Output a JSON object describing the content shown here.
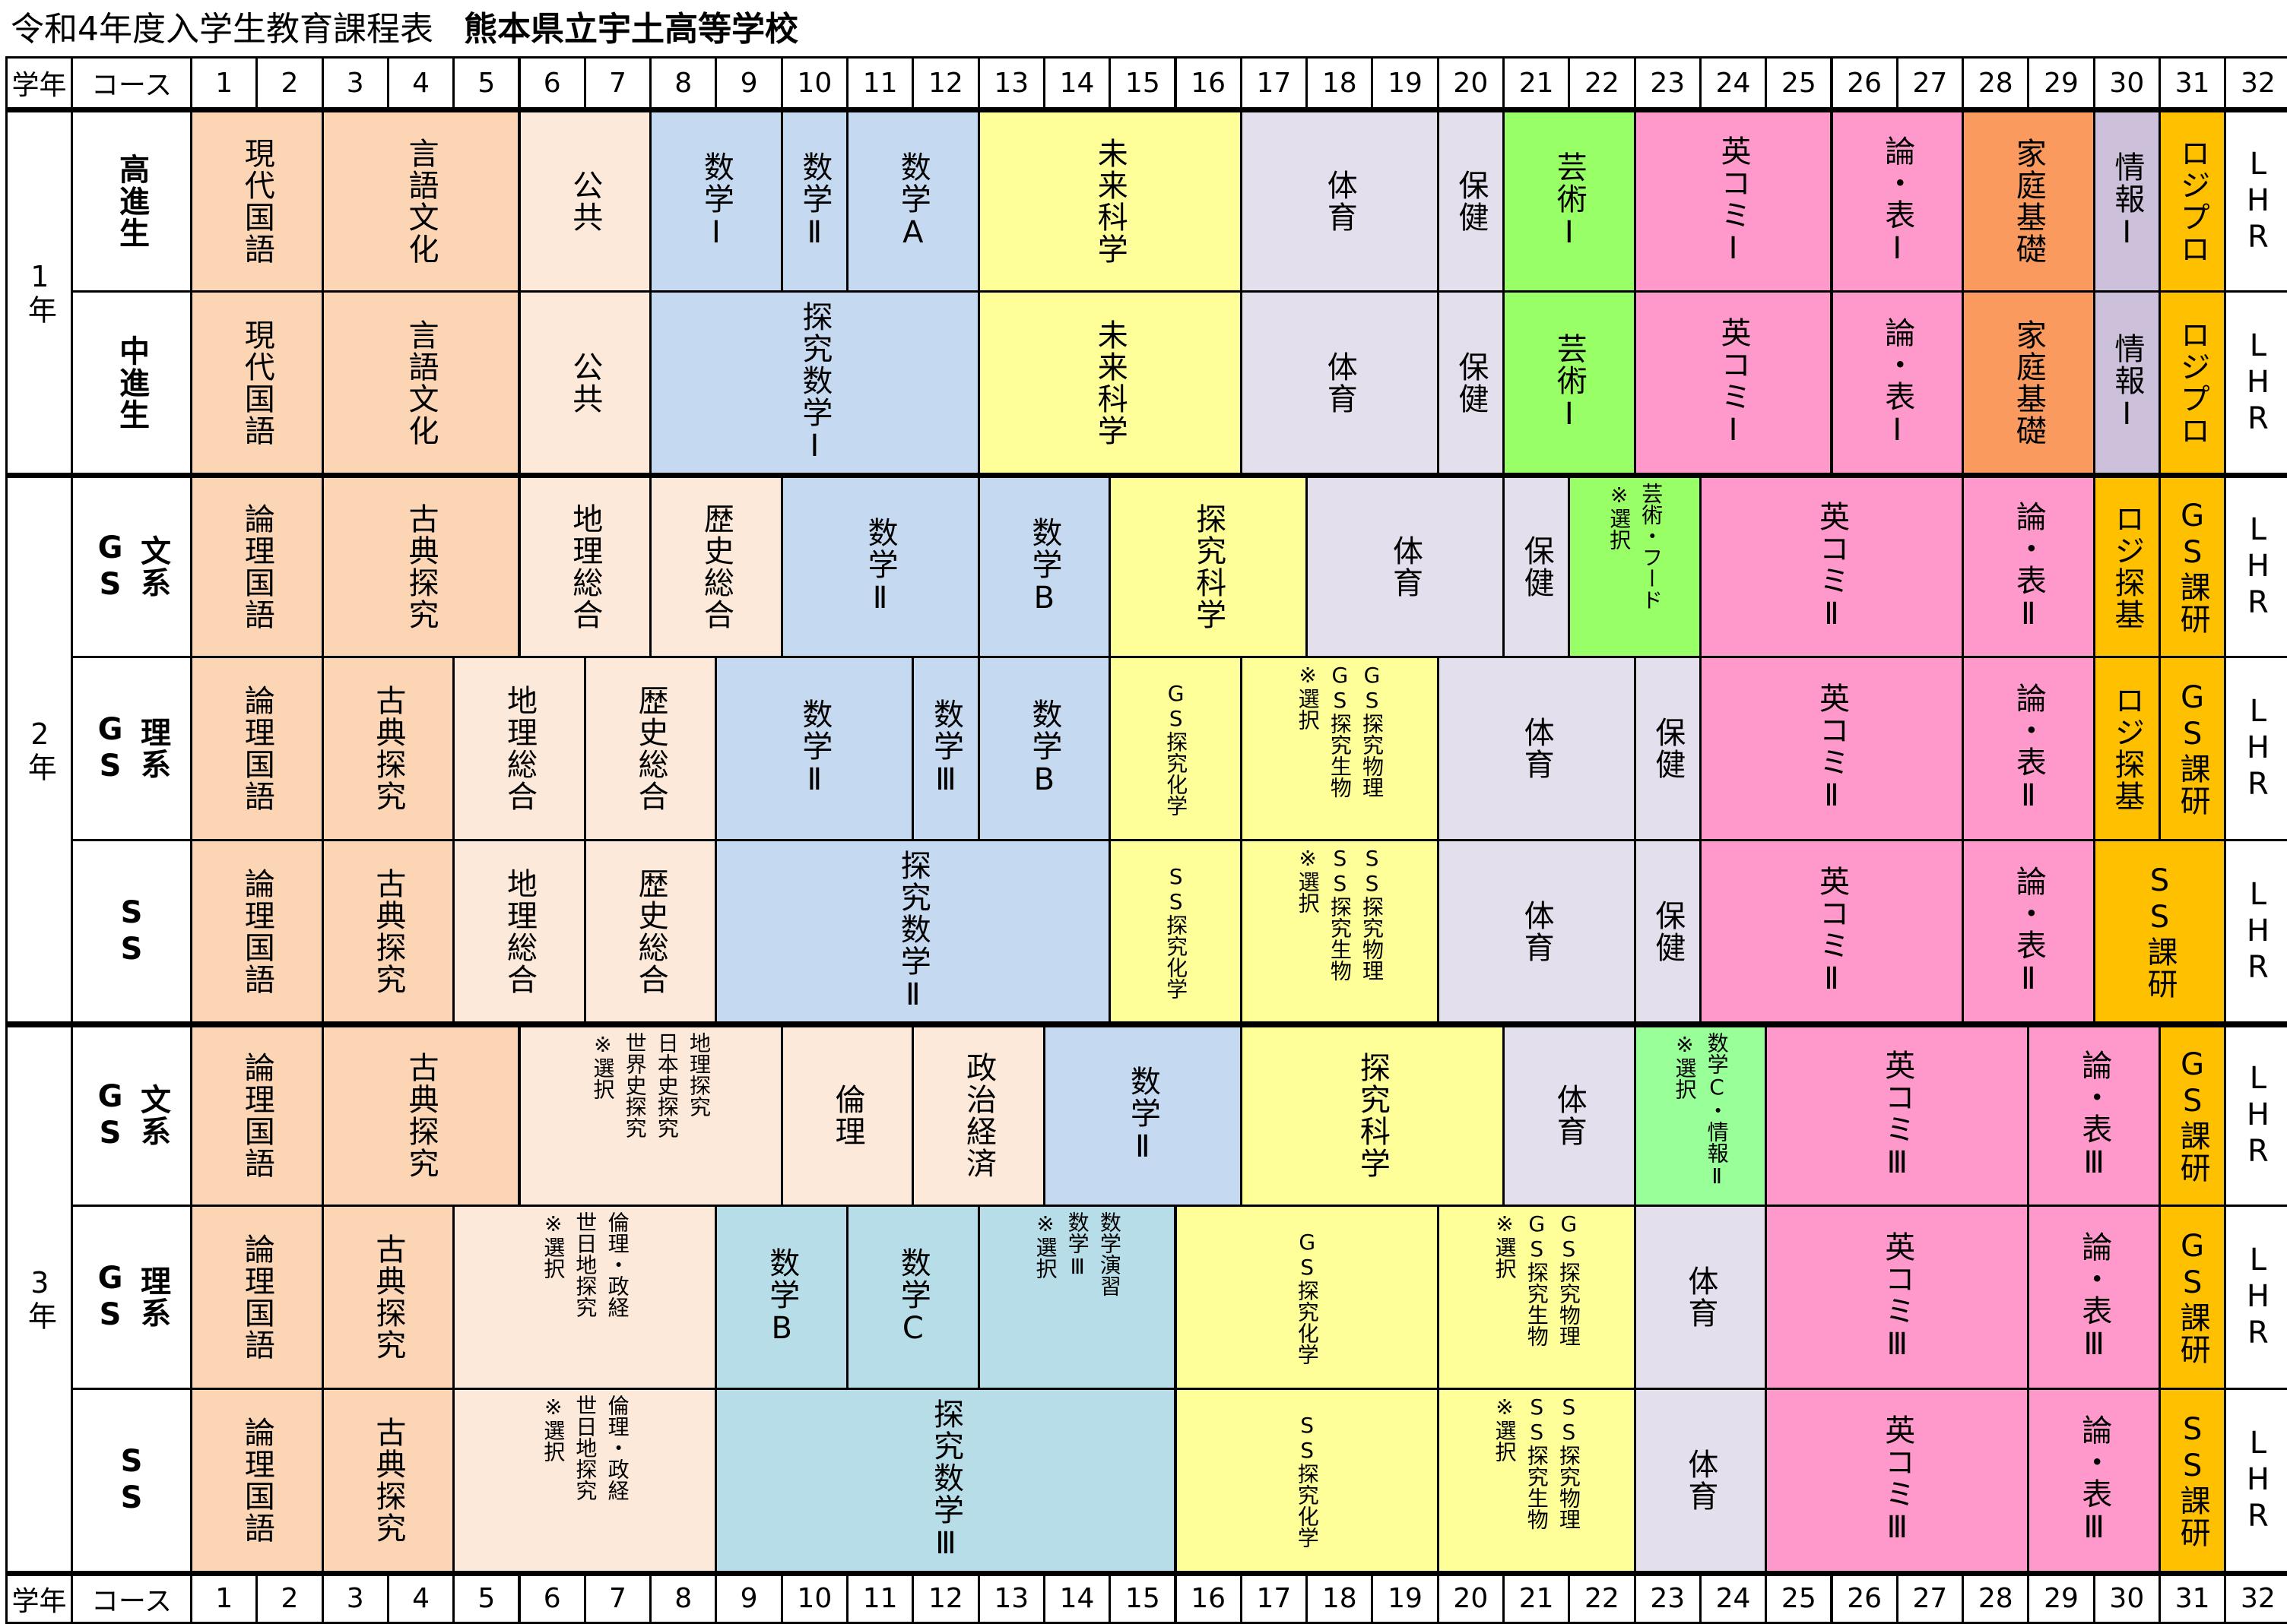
{
  "title": {
    "main": "令和4年度入学生教育課程表",
    "school": "熊本県立宇土高等学校"
  },
  "header": {
    "grade": "学年",
    "course": "コース",
    "periods": [
      "1",
      "2",
      "3",
      "4",
      "5",
      "6",
      "7",
      "8",
      "9",
      "10",
      "11",
      "12",
      "13",
      "14",
      "15",
      "16",
      "17",
      "18",
      "19",
      "20",
      "21",
      "22",
      "23",
      "24",
      "25",
      "26",
      "27",
      "28",
      "29",
      "30",
      "31",
      "32"
    ]
  },
  "colors": {
    "kokugo": "#fcd5b4",
    "shakai": "#fde9d9",
    "math": "#c5d9f1",
    "math2": "#b7dee8",
    "sci": "#ffff99",
    "pe": "#e4dfec",
    "art": "#99ff66",
    "art3": "#99ff99",
    "eigo": "#ff99cc",
    "katei": "#fa9a5f",
    "joho": "#ccc0da",
    "gold": "#ffc000",
    "white": "#ffffff"
  },
  "grades": [
    {
      "label": "1年",
      "rows": [
        0,
        1
      ]
    },
    {
      "label": "2年",
      "rows": [
        2,
        3,
        4
      ]
    },
    {
      "label": "3年",
      "rows": [
        5,
        6,
        7
      ]
    }
  ],
  "rows": [
    {
      "course": [
        "高進生"
      ],
      "cells": [
        {
          "t": [
            "現代国語"
          ],
          "s": 1,
          "n": 2,
          "c": "kokugo"
        },
        {
          "t": [
            "言語文化"
          ],
          "s": 3,
          "n": 3,
          "c": "kokugo"
        },
        {
          "t": [
            "公共"
          ],
          "s": 6,
          "n": 2,
          "c": "shakai"
        },
        {
          "t": [
            "数学Ⅰ"
          ],
          "s": 8,
          "n": 2,
          "c": "math"
        },
        {
          "t": [
            "数学Ⅱ"
          ],
          "s": 10,
          "n": 1,
          "c": "math"
        },
        {
          "t": [
            "数学A"
          ],
          "s": 11,
          "n": 2,
          "c": "math"
        },
        {
          "t": [
            "未来科学"
          ],
          "s": 13,
          "n": 4,
          "c": "sci"
        },
        {
          "t": [
            "体育"
          ],
          "s": 17,
          "n": 3,
          "c": "pe"
        },
        {
          "t": [
            "保健"
          ],
          "s": 20,
          "n": 1,
          "c": "pe"
        },
        {
          "t": [
            "芸術Ⅰ"
          ],
          "s": 21,
          "n": 2,
          "c": "art"
        },
        {
          "t": [
            "英コミⅠ"
          ],
          "s": 23,
          "n": 3,
          "c": "eigo"
        },
        {
          "t": [
            "論・表Ⅰ"
          ],
          "s": 26,
          "n": 2,
          "c": "eigo"
        },
        {
          "t": [
            "家庭基礎"
          ],
          "s": 28,
          "n": 2,
          "c": "katei"
        },
        {
          "t": [
            "情報Ⅰ"
          ],
          "s": 30,
          "n": 1,
          "c": "joho"
        },
        {
          "t": [
            "ロジプロ"
          ],
          "s": 31,
          "n": 1,
          "c": "gold"
        },
        {
          "t": [
            "LHR"
          ],
          "s": 32,
          "n": 1,
          "c": "white"
        }
      ]
    },
    {
      "course": [
        "中進生"
      ],
      "cells": [
        {
          "t": [
            "現代国語"
          ],
          "s": 1,
          "n": 2,
          "c": "kokugo"
        },
        {
          "t": [
            "言語文化"
          ],
          "s": 3,
          "n": 3,
          "c": "kokugo"
        },
        {
          "t": [
            "公共"
          ],
          "s": 6,
          "n": 2,
          "c": "shakai"
        },
        {
          "t": [
            "探究数学Ⅰ"
          ],
          "s": 8,
          "n": 5,
          "c": "math"
        },
        {
          "t": [
            "未来科学"
          ],
          "s": 13,
          "n": 4,
          "c": "sci"
        },
        {
          "t": [
            "体育"
          ],
          "s": 17,
          "n": 3,
          "c": "pe"
        },
        {
          "t": [
            "保健"
          ],
          "s": 20,
          "n": 1,
          "c": "pe"
        },
        {
          "t": [
            "芸術Ⅰ"
          ],
          "s": 21,
          "n": 2,
          "c": "art"
        },
        {
          "t": [
            "英コミⅠ"
          ],
          "s": 23,
          "n": 3,
          "c": "eigo"
        },
        {
          "t": [
            "論・表Ⅰ"
          ],
          "s": 26,
          "n": 2,
          "c": "eigo"
        },
        {
          "t": [
            "家庭基礎"
          ],
          "s": 28,
          "n": 2,
          "c": "katei"
        },
        {
          "t": [
            "情報Ⅰ"
          ],
          "s": 30,
          "n": 1,
          "c": "joho"
        },
        {
          "t": [
            "ロジプロ"
          ],
          "s": 31,
          "n": 1,
          "c": "gold"
        },
        {
          "t": [
            "LHR"
          ],
          "s": 32,
          "n": 1,
          "c": "white"
        }
      ]
    },
    {
      "course": [
        "GS",
        "文系"
      ],
      "cells": [
        {
          "t": [
            "論理国語"
          ],
          "s": 1,
          "n": 2,
          "c": "kokugo"
        },
        {
          "t": [
            "古典探究"
          ],
          "s": 3,
          "n": 3,
          "c": "kokugo"
        },
        {
          "t": [
            "地理総合"
          ],
          "s": 6,
          "n": 2,
          "c": "shakai"
        },
        {
          "t": [
            "歴史総合"
          ],
          "s": 8,
          "n": 2,
          "c": "shakai"
        },
        {
          "t": [
            "数学Ⅱ"
          ],
          "s": 10,
          "n": 3,
          "c": "math"
        },
        {
          "t": [
            "数学B"
          ],
          "s": 13,
          "n": 2,
          "c": "math"
        },
        {
          "t": [
            "探究科学"
          ],
          "s": 15,
          "n": 3,
          "c": "sci"
        },
        {
          "t": [
            "体育"
          ],
          "s": 18,
          "n": 3,
          "c": "pe"
        },
        {
          "t": [
            "保健"
          ],
          "s": 21,
          "n": 1,
          "c": "pe"
        },
        {
          "t": [
            "※選択",
            "芸術・フード"
          ],
          "s": 22,
          "n": 2,
          "c": "art",
          "m": true
        },
        {
          "t": [
            "英コミⅡ"
          ],
          "s": 24,
          "n": 4,
          "c": "eigo"
        },
        {
          "t": [
            "論・表Ⅱ"
          ],
          "s": 28,
          "n": 2,
          "c": "eigo"
        },
        {
          "t": [
            "ロジ探基"
          ],
          "s": 30,
          "n": 1,
          "c": "gold"
        },
        {
          "t": [
            "GS課研"
          ],
          "s": 31,
          "n": 1,
          "c": "gold"
        },
        {
          "t": [
            "LHR"
          ],
          "s": 32,
          "n": 1,
          "c": "white"
        }
      ]
    },
    {
      "course": [
        "GS",
        "理系"
      ],
      "cells": [
        {
          "t": [
            "論理国語"
          ],
          "s": 1,
          "n": 2,
          "c": "kokugo"
        },
        {
          "t": [
            "古典探究"
          ],
          "s": 3,
          "n": 2,
          "c": "kokugo"
        },
        {
          "t": [
            "地理総合"
          ],
          "s": 5,
          "n": 2,
          "c": "shakai"
        },
        {
          "t": [
            "歴史総合"
          ],
          "s": 7,
          "n": 2,
          "c": "shakai"
        },
        {
          "t": [
            "数学Ⅱ"
          ],
          "s": 9,
          "n": 3,
          "c": "math"
        },
        {
          "t": [
            "数学Ⅲ"
          ],
          "s": 12,
          "n": 1,
          "c": "math"
        },
        {
          "t": [
            "数学B"
          ],
          "s": 13,
          "n": 2,
          "c": "math"
        },
        {
          "t": [
            "GS探究化学"
          ],
          "s": 15,
          "n": 2,
          "c": "sci",
          "sm": true
        },
        {
          "t": [
            "※選択",
            "GS探究生物",
            "GS探究物理"
          ],
          "s": 17,
          "n": 3,
          "c": "sci",
          "m": true
        },
        {
          "t": [
            "体育"
          ],
          "s": 20,
          "n": 3,
          "c": "pe"
        },
        {
          "t": [
            "保健"
          ],
          "s": 23,
          "n": 1,
          "c": "pe"
        },
        {
          "t": [
            "英コミⅡ"
          ],
          "s": 24,
          "n": 4,
          "c": "eigo"
        },
        {
          "t": [
            "論・表Ⅱ"
          ],
          "s": 28,
          "n": 2,
          "c": "eigo"
        },
        {
          "t": [
            "ロジ探基"
          ],
          "s": 30,
          "n": 1,
          "c": "gold"
        },
        {
          "t": [
            "GS課研"
          ],
          "s": 31,
          "n": 1,
          "c": "gold"
        },
        {
          "t": [
            "LHR"
          ],
          "s": 32,
          "n": 1,
          "c": "white"
        }
      ]
    },
    {
      "course": [
        "SS"
      ],
      "cells": [
        {
          "t": [
            "論理国語"
          ],
          "s": 1,
          "n": 2,
          "c": "kokugo"
        },
        {
          "t": [
            "古典探究"
          ],
          "s": 3,
          "n": 2,
          "c": "kokugo"
        },
        {
          "t": [
            "地理総合"
          ],
          "s": 5,
          "n": 2,
          "c": "shakai"
        },
        {
          "t": [
            "歴史総合"
          ],
          "s": 7,
          "n": 2,
          "c": "shakai"
        },
        {
          "t": [
            "探究数学Ⅱ"
          ],
          "s": 9,
          "n": 6,
          "c": "math"
        },
        {
          "t": [
            "SS探究化学"
          ],
          "s": 15,
          "n": 2,
          "c": "sci",
          "sm": true
        },
        {
          "t": [
            "※選択",
            "SS探究生物",
            "SS探究物理"
          ],
          "s": 17,
          "n": 3,
          "c": "sci",
          "m": true
        },
        {
          "t": [
            "体育"
          ],
          "s": 20,
          "n": 3,
          "c": "pe"
        },
        {
          "t": [
            "保健"
          ],
          "s": 23,
          "n": 1,
          "c": "pe"
        },
        {
          "t": [
            "英コミⅡ"
          ],
          "s": 24,
          "n": 4,
          "c": "eigo"
        },
        {
          "t": [
            "論・表Ⅱ"
          ],
          "s": 28,
          "n": 2,
          "c": "eigo"
        },
        {
          "t": [
            "SS課研"
          ],
          "s": 30,
          "n": 2,
          "c": "gold"
        },
        {
          "t": [
            "LHR"
          ],
          "s": 32,
          "n": 1,
          "c": "white"
        }
      ]
    },
    {
      "course": [
        "GS",
        "文系"
      ],
      "cells": [
        {
          "t": [
            "論理国語"
          ],
          "s": 1,
          "n": 2,
          "c": "kokugo"
        },
        {
          "t": [
            "古典探究"
          ],
          "s": 3,
          "n": 3,
          "c": "kokugo"
        },
        {
          "t": [
            "※選択",
            "世界史探究",
            "日本史探究",
            "地理探究"
          ],
          "s": 6,
          "n": 4,
          "c": "shakai",
          "m": true
        },
        {
          "t": [
            "倫理"
          ],
          "s": 10,
          "n": 2,
          "c": "shakai"
        },
        {
          "t": [
            "政治経済"
          ],
          "s": 12,
          "n": 2,
          "c": "shakai"
        },
        {
          "t": [
            "数学Ⅱ"
          ],
          "s": 14,
          "n": 3,
          "c": "math"
        },
        {
          "t": [
            "探究科学"
          ],
          "s": 17,
          "n": 4,
          "c": "sci"
        },
        {
          "t": [
            "体育"
          ],
          "s": 21,
          "n": 2,
          "c": "pe"
        },
        {
          "t": [
            "※選択",
            "数学C・情報Ⅱ"
          ],
          "s": 23,
          "n": 2,
          "c": "art3",
          "m": true
        },
        {
          "t": [
            "英コミⅢ"
          ],
          "s": 25,
          "n": 4,
          "c": "eigo"
        },
        {
          "t": [
            "論・表Ⅲ"
          ],
          "s": 29,
          "n": 2,
          "c": "eigo"
        },
        {
          "t": [
            "GS課研"
          ],
          "s": 31,
          "n": 1,
          "c": "gold"
        },
        {
          "t": [
            "LHR"
          ],
          "s": 32,
          "n": 1,
          "c": "white"
        }
      ]
    },
    {
      "course": [
        "GS",
        "理系"
      ],
      "cells": [
        {
          "t": [
            "論理国語"
          ],
          "s": 1,
          "n": 2,
          "c": "kokugo"
        },
        {
          "t": [
            "古典探究"
          ],
          "s": 3,
          "n": 2,
          "c": "kokugo"
        },
        {
          "t": [
            "※選択",
            "世日地探究",
            "倫理・政経"
          ],
          "s": 5,
          "n": 4,
          "c": "shakai",
          "m": true
        },
        {
          "t": [
            "数学B"
          ],
          "s": 9,
          "n": 2,
          "c": "math2"
        },
        {
          "t": [
            "数学C"
          ],
          "s": 11,
          "n": 2,
          "c": "math2"
        },
        {
          "t": [
            "※選択",
            "数学Ⅲ",
            "数学演習"
          ],
          "s": 13,
          "n": 3,
          "c": "math2",
          "m": true
        },
        {
          "t": [
            "GS探究化学"
          ],
          "s": 16,
          "n": 4,
          "c": "sci",
          "sm": true
        },
        {
          "t": [
            "※選択",
            "GS探究生物",
            "GS探究物理"
          ],
          "s": 20,
          "n": 3,
          "c": "sci",
          "m": true
        },
        {
          "t": [
            "体育"
          ],
          "s": 23,
          "n": 2,
          "c": "pe"
        },
        {
          "t": [
            "英コミⅢ"
          ],
          "s": 25,
          "n": 4,
          "c": "eigo"
        },
        {
          "t": [
            "論・表Ⅲ"
          ],
          "s": 29,
          "n": 2,
          "c": "eigo"
        },
        {
          "t": [
            "GS課研"
          ],
          "s": 31,
          "n": 1,
          "c": "gold"
        },
        {
          "t": [
            "LHR"
          ],
          "s": 32,
          "n": 1,
          "c": "white"
        }
      ]
    },
    {
      "course": [
        "SS"
      ],
      "cells": [
        {
          "t": [
            "論理国語"
          ],
          "s": 1,
          "n": 2,
          "c": "kokugo"
        },
        {
          "t": [
            "古典探究"
          ],
          "s": 3,
          "n": 2,
          "c": "kokugo"
        },
        {
          "t": [
            "※選択",
            "世日地探究",
            "倫理・政経"
          ],
          "s": 5,
          "n": 4,
          "c": "shakai",
          "m": true
        },
        {
          "t": [
            "探究数学Ⅲ"
          ],
          "s": 9,
          "n": 7,
          "c": "math2"
        },
        {
          "t": [
            "SS探究化学"
          ],
          "s": 16,
          "n": 4,
          "c": "sci",
          "sm": true
        },
        {
          "t": [
            "※選択",
            "SS探究生物",
            "SS探究物理"
          ],
          "s": 20,
          "n": 3,
          "c": "sci",
          "m": true
        },
        {
          "t": [
            "体育"
          ],
          "s": 23,
          "n": 2,
          "c": "pe"
        },
        {
          "t": [
            "英コミⅢ"
          ],
          "s": 25,
          "n": 4,
          "c": "eigo"
        },
        {
          "t": [
            "論・表Ⅲ"
          ],
          "s": 29,
          "n": 2,
          "c": "eigo"
        },
        {
          "t": [
            "SS課研"
          ],
          "s": 31,
          "n": 1,
          "c": "gold"
        },
        {
          "t": [
            "LHR"
          ],
          "s": 32,
          "n": 1,
          "c": "white"
        }
      ]
    }
  ]
}
